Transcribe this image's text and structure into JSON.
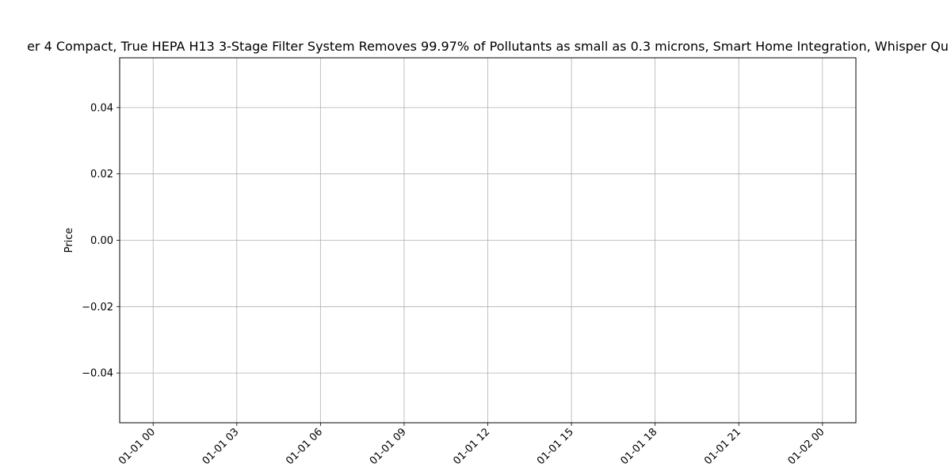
{
  "chart_data": {
    "type": "line",
    "title": "er 4 Compact, True HEPA H13 3-Stage Filter System Removes 99.97% of Pollutants as small as 0.3 microns, Smart Home Integration, Whisper Qu",
    "xlabel": "",
    "ylabel": "Price",
    "x_tick_labels": [
      "01-01 00",
      "01-01 03",
      "01-01 06",
      "01-01 09",
      "01-01 12",
      "01-01 15",
      "01-01 18",
      "01-01 21",
      "01-02 00"
    ],
    "y_tick_labels": [
      "0.04",
      "0.02",
      "0.00",
      "−0.02",
      "−0.04"
    ],
    "y_ticks": [
      0.04,
      0.02,
      0.0,
      -0.02,
      -0.04
    ],
    "ylim": [
      -0.055,
      0.055
    ],
    "xlim_hours": [
      -1.2,
      25.2
    ],
    "x_tick_hours": [
      0,
      3,
      6,
      9,
      12,
      15,
      18,
      21,
      24
    ],
    "series": [],
    "grid": true,
    "colors": {
      "grid": "#b0b0b0",
      "axis": "#000000"
    }
  }
}
